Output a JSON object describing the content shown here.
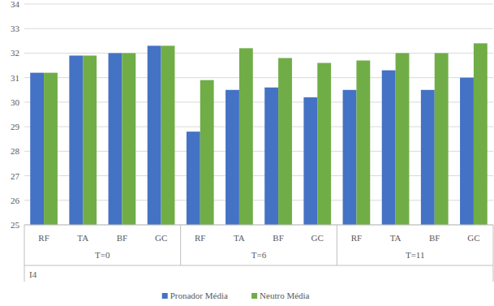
{
  "chart_data": {
    "type": "bar",
    "categories": [
      "RF",
      "TA",
      "BF",
      "GC",
      "RF",
      "TA",
      "BF",
      "GC",
      "RF",
      "TA",
      "BF",
      "GC"
    ],
    "category_groups": [
      {
        "label": "T=0",
        "span": 4
      },
      {
        "label": "T=6",
        "span": 4
      },
      {
        "label": "T=11",
        "span": 4
      }
    ],
    "category_group_title": "I4",
    "series": [
      {
        "name": "Pronador Média",
        "color": "#4472c4",
        "values": [
          31.2,
          31.9,
          32.0,
          32.3,
          28.8,
          30.5,
          30.6,
          30.2,
          30.5,
          31.3,
          30.5,
          31.0
        ]
      },
      {
        "name": "Neutro Média",
        "color": "#70ad47",
        "values": [
          31.2,
          31.9,
          32.0,
          32.3,
          30.9,
          32.2,
          31.8,
          31.6,
          31.7,
          32.0,
          32.0,
          32.4
        ]
      }
    ],
    "ylim": [
      25,
      34
    ],
    "yticks": [
      25,
      26,
      27,
      28,
      29,
      30,
      31,
      32,
      33,
      34
    ],
    "grid": true,
    "legend": "bottom"
  }
}
